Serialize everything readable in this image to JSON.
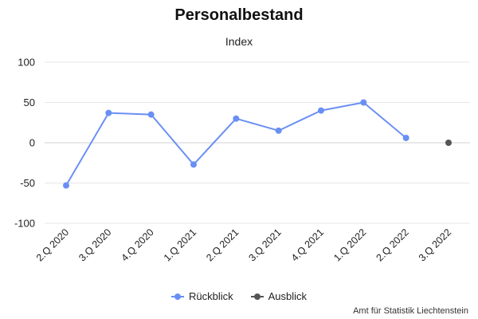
{
  "chart_data": {
    "type": "line",
    "title": "Personalbestand",
    "subtitle": "Index",
    "categories": [
      "2.Q 2020",
      "3.Q 2020",
      "4.Q 2020",
      "1.Q 2021",
      "2.Q 2021",
      "3.Q 2021",
      "4.Q 2021",
      "1.Q 2022",
      "2.Q 2022",
      "3.Q 2022"
    ],
    "ylim": [
      -100,
      100
    ],
    "yticks": [
      "100",
      "50",
      "0",
      "-50",
      "-100"
    ],
    "grid": true,
    "legend_position": "bottom",
    "series": [
      {
        "name": "Rückblick",
        "color": "#6a8ff4",
        "values": [
          -53,
          37,
          35,
          -27,
          30,
          15,
          40,
          50,
          6,
          null
        ]
      },
      {
        "name": "Ausblick",
        "color": "#555555",
        "values": [
          null,
          null,
          null,
          null,
          null,
          null,
          null,
          null,
          null,
          0
        ]
      }
    ],
    "source": "Amt für Statistik Liechtenstein"
  }
}
